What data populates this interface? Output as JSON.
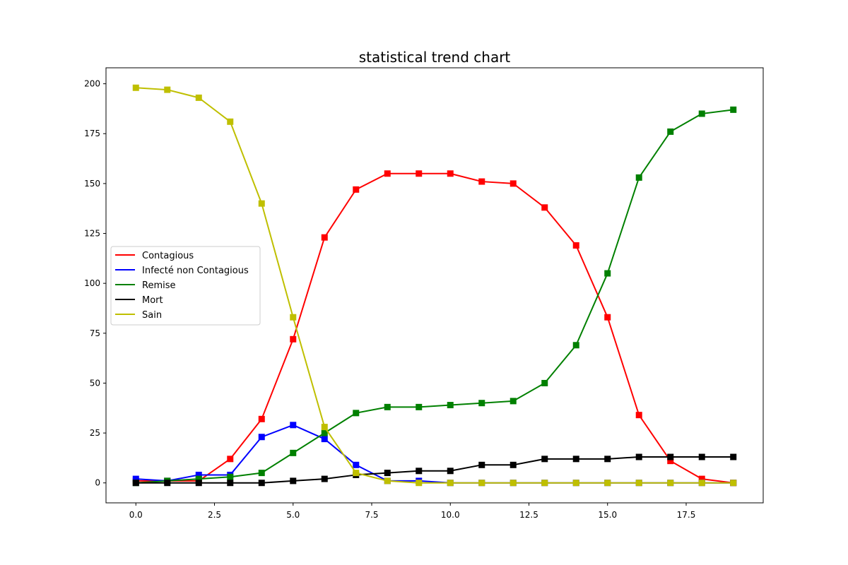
{
  "chart_data": {
    "type": "line",
    "title": "statistical trend chart",
    "xlabel": "",
    "ylabel": "",
    "xlim": [
      -0.95,
      19.95
    ],
    "ylim": [
      -10,
      208
    ],
    "x_ticks": [
      0,
      2.5,
      5,
      7.5,
      10,
      12.5,
      15,
      17.5
    ],
    "x_tick_labels": [
      "0.0",
      "2.5",
      "5.0",
      "7.5",
      "10.0",
      "12.5",
      "15.0",
      "17.5"
    ],
    "y_ticks": [
      0,
      25,
      50,
      75,
      100,
      125,
      150,
      175,
      200
    ],
    "y_tick_labels": [
      "0",
      "25",
      "50",
      "75",
      "100",
      "125",
      "150",
      "175",
      "200"
    ],
    "grid": false,
    "legend_position": "center-left",
    "marker": "square",
    "x": [
      0,
      1,
      2,
      3,
      4,
      5,
      6,
      7,
      8,
      9,
      10,
      11,
      12,
      13,
      14,
      15,
      16,
      17,
      18,
      19
    ],
    "series": [
      {
        "name": "Contagious",
        "color": "#ff0000",
        "values": [
          1,
          1,
          1,
          12,
          32,
          72,
          123,
          147,
          155,
          155,
          155,
          151,
          150,
          138,
          119,
          83,
          34,
          11,
          2,
          0
        ]
      },
      {
        "name": "Infecté non Contagious",
        "color": "#0000ff",
        "values": [
          2,
          1,
          4,
          4,
          23,
          29,
          22,
          9,
          1,
          1,
          0,
          0,
          0,
          0,
          0,
          0,
          0,
          0,
          0,
          0
        ]
      },
      {
        "name": "Remise",
        "color": "#008000",
        "values": [
          0,
          1,
          2,
          3,
          5,
          15,
          25,
          35,
          38,
          38,
          39,
          40,
          41,
          50,
          69,
          105,
          153,
          176,
          185,
          187
        ]
      },
      {
        "name": "Mort",
        "color": "#000000",
        "values": [
          0,
          0,
          0,
          0,
          0,
          1,
          2,
          4,
          5,
          6,
          6,
          9,
          9,
          12,
          12,
          12,
          13,
          13,
          13,
          13
        ]
      },
      {
        "name": "Sain",
        "color": "#bfbf00",
        "values": [
          198,
          197,
          193,
          181,
          140,
          83,
          28,
          5,
          1,
          0,
          0,
          0,
          0,
          0,
          0,
          0,
          0,
          0,
          0,
          0
        ]
      }
    ]
  }
}
